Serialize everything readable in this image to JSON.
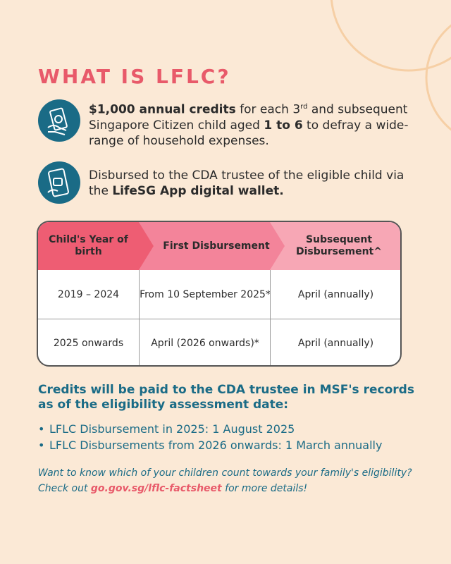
{
  "title": "WHAT IS LFLC?",
  "features": [
    {
      "icon": "cash-hand-icon",
      "bold1": "$1,000 annual credits",
      "text1": " for each 3",
      "sup": "rd",
      "text2": " and subsequent Singapore Citizen child aged ",
      "bold2": "1 to 6",
      "text3": " to defray a wide-range of household expenses."
    },
    {
      "icon": "phone-wallet-icon",
      "text1": "Disbursed to the CDA trustee of the eligible child via the ",
      "bold1": "LifeSG App digital wallet."
    }
  ],
  "table": {
    "headers": [
      "Child's Year of birth",
      "First Disbursement",
      "Subsequent Disbursement^"
    ],
    "rows": [
      [
        "2019 – 2024",
        "From 10 September 2025*",
        "April (annually)"
      ],
      [
        "2025 onwards",
        "April (2026 onwards)*",
        "April (annually)"
      ]
    ]
  },
  "credits_heading": "Credits will be paid to the CDA trustee in MSF's records as of the eligibility assessment date:",
  "bullets": [
    "LFLC Disbursement in 2025: 1 August 2025",
    "LFLC Disbursements from 2026 onwards: 1 March annually"
  ],
  "footer": {
    "text1": "Want to know which of your children count towards your family's eligibility? Check out ",
    "link": "go.gov.sg/lflc-factsheet",
    "text2": " for more details!"
  },
  "colors": {
    "background": "#fbe9d6",
    "accent_pink": "#e85a6a",
    "teal": "#1a6b86",
    "header_pink_1": "#ee5d73",
    "header_pink_2": "#f3849a",
    "header_pink_3": "#f7a7b5"
  }
}
